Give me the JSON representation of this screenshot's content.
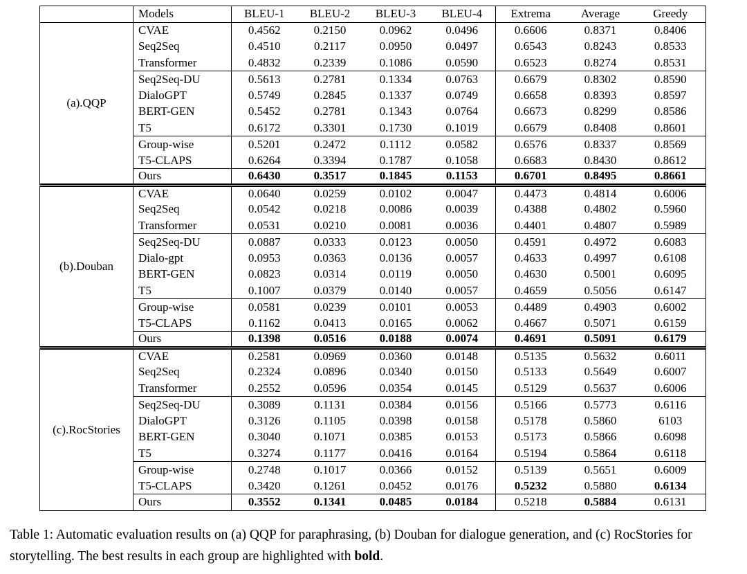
{
  "table": {
    "header": {
      "models_label": "Models",
      "metric_labels": [
        "BLEU-1",
        "BLEU-2",
        "BLEU-3",
        "BLEU-4",
        "Extrema",
        "Average",
        "Greedy"
      ]
    },
    "groups": [
      {
        "label": "(a).QQP",
        "subgroups": [
          {
            "rows": [
              {
                "model": "CVAE",
                "values": [
                  "0.4562",
                  "0.2150",
                  "0.0962",
                  "0.0496",
                  "0.6606",
                  "0.8371",
                  "0.8406"
                ],
                "bold": [
                  0,
                  0,
                  0,
                  0,
                  0,
                  0,
                  0
                ]
              },
              {
                "model": "Seq2Seq",
                "values": [
                  "0.4510",
                  "0.2117",
                  "0.0950",
                  "0.0497",
                  "0.6543",
                  "0.8243",
                  "0.8533"
                ],
                "bold": [
                  0,
                  0,
                  0,
                  0,
                  0,
                  0,
                  0
                ]
              },
              {
                "model": "Transformer",
                "values": [
                  "0.4832",
                  "0.2339",
                  "0.1086",
                  "0.0590",
                  "0.6523",
                  "0.8274",
                  "0.8531"
                ],
                "bold": [
                  0,
                  0,
                  0,
                  0,
                  0,
                  0,
                  0
                ]
              }
            ]
          },
          {
            "rows": [
              {
                "model": "Seq2Seq-DU",
                "values": [
                  "0.5613",
                  "0.2781",
                  "0.1334",
                  "0.0763",
                  "0.6679",
                  "0.8302",
                  "0.8590"
                ],
                "bold": [
                  0,
                  0,
                  0,
                  0,
                  0,
                  0,
                  0
                ]
              },
              {
                "model": "DialoGPT",
                "values": [
                  "0.5749",
                  "0.2845",
                  "0.1337",
                  "0.0749",
                  "0.6658",
                  "0.8393",
                  "0.8597"
                ],
                "bold": [
                  0,
                  0,
                  0,
                  0,
                  0,
                  0,
                  0
                ]
              },
              {
                "model": "BERT-GEN",
                "values": [
                  "0.5452",
                  "0.2781",
                  "0.1343",
                  "0.0764",
                  "0.6673",
                  "0.8299",
                  "0.8586"
                ],
                "bold": [
                  0,
                  0,
                  0,
                  0,
                  0,
                  0,
                  0
                ]
              },
              {
                "model": "T5",
                "values": [
                  "0.6172",
                  "0.3301",
                  "0.1730",
                  "0.1019",
                  "0.6679",
                  "0.8408",
                  "0.8601"
                ],
                "bold": [
                  0,
                  0,
                  0,
                  0,
                  0,
                  0,
                  0
                ]
              }
            ]
          },
          {
            "rows": [
              {
                "model": "Group-wise",
                "values": [
                  "0.5201",
                  "0.2472",
                  "0.1112",
                  "0.0582",
                  "0.6576",
                  "0.8337",
                  "0.8569"
                ],
                "bold": [
                  0,
                  0,
                  0,
                  0,
                  0,
                  0,
                  0
                ]
              },
              {
                "model": "T5-CLAPS",
                "values": [
                  "0.6264",
                  "0.3394",
                  "0.1787",
                  "0.1058",
                  "0.6683",
                  "0.8430",
                  "0.8612"
                ],
                "bold": [
                  0,
                  0,
                  0,
                  0,
                  0,
                  0,
                  0
                ]
              }
            ]
          },
          {
            "rows": [
              {
                "model": "Ours",
                "values": [
                  "0.6430",
                  "0.3517",
                  "0.1845",
                  "0.1153",
                  "0.6701",
                  "0.8495",
                  "0.8661"
                ],
                "bold": [
                  1,
                  1,
                  1,
                  1,
                  1,
                  1,
                  1
                ]
              }
            ]
          }
        ]
      },
      {
        "label": "(b).Douban",
        "subgroups": [
          {
            "rows": [
              {
                "model": "CVAE",
                "values": [
                  "0.0640",
                  "0.0259",
                  "0.0102",
                  "0.0047",
                  "0.4473",
                  "0.4814",
                  "0.6006"
                ],
                "bold": [
                  0,
                  0,
                  0,
                  0,
                  0,
                  0,
                  0
                ]
              },
              {
                "model": "Seq2Seq",
                "values": [
                  "0.0542",
                  "0.0218",
                  "0.0086",
                  "0.0039",
                  "0.4388",
                  "0.4802",
                  "0.5960"
                ],
                "bold": [
                  0,
                  0,
                  0,
                  0,
                  0,
                  0,
                  0
                ]
              },
              {
                "model": "Transformer",
                "values": [
                  "0.0531",
                  "0.0210",
                  "0.0081",
                  "0.0036",
                  "0.4401",
                  "0.4807",
                  "0.5989"
                ],
                "bold": [
                  0,
                  0,
                  0,
                  0,
                  0,
                  0,
                  0
                ]
              }
            ]
          },
          {
            "rows": [
              {
                "model": "Seq2Seq-DU",
                "values": [
                  "0.0887",
                  "0.0333",
                  "0.0123",
                  "0.0050",
                  "0.4591",
                  "0.4972",
                  "0.6083"
                ],
                "bold": [
                  0,
                  0,
                  0,
                  0,
                  0,
                  0,
                  0
                ]
              },
              {
                "model": "Dialo-gpt",
                "values": [
                  "0.0953",
                  "0.0363",
                  "0.0136",
                  "0.0057",
                  "0.4633",
                  "0.4997",
                  "0.6108"
                ],
                "bold": [
                  0,
                  0,
                  0,
                  0,
                  0,
                  0,
                  0
                ]
              },
              {
                "model": "BERT-GEN",
                "values": [
                  "0.0823",
                  "0.0314",
                  "0.0119",
                  "0.0050",
                  "0.4630",
                  "0.5001",
                  "0.6095"
                ],
                "bold": [
                  0,
                  0,
                  0,
                  0,
                  0,
                  0,
                  0
                ]
              },
              {
                "model": "T5",
                "values": [
                  "0.1007",
                  "0.0379",
                  "0.0140",
                  "0.0057",
                  "0.4659",
                  "0.5056",
                  "0.6147"
                ],
                "bold": [
                  0,
                  0,
                  0,
                  0,
                  0,
                  0,
                  0
                ]
              }
            ]
          },
          {
            "rows": [
              {
                "model": "Group-wise",
                "values": [
                  "0.0581",
                  "0.0239",
                  "0.0101",
                  "0.0053",
                  "0.4489",
                  "0.4903",
                  "0.6002"
                ],
                "bold": [
                  0,
                  0,
                  0,
                  0,
                  0,
                  0,
                  0
                ]
              },
              {
                "model": "T5-CLAPS",
                "values": [
                  "0.1162",
                  "0.0413",
                  "0.0165",
                  "0.0062",
                  "0.4667",
                  "0.5071",
                  "0.6159"
                ],
                "bold": [
                  0,
                  0,
                  0,
                  0,
                  0,
                  0,
                  0
                ]
              }
            ]
          },
          {
            "rows": [
              {
                "model": "Ours",
                "values": [
                  "0.1398",
                  "0.0516",
                  "0.0188",
                  "0.0074",
                  "0.4691",
                  "0.5091",
                  "0.6179"
                ],
                "bold": [
                  1,
                  1,
                  1,
                  1,
                  1,
                  1,
                  1
                ]
              }
            ]
          }
        ]
      },
      {
        "label": "(c).RocStories",
        "subgroups": [
          {
            "rows": [
              {
                "model": "CVAE",
                "values": [
                  "0.2581",
                  "0.0969",
                  "0.0360",
                  "0.0148",
                  "0.5135",
                  "0.5632",
                  "0.6011"
                ],
                "bold": [
                  0,
                  0,
                  0,
                  0,
                  0,
                  0,
                  0
                ]
              },
              {
                "model": "Seq2Seq",
                "values": [
                  "0.2324",
                  "0.0896",
                  "0.0340",
                  "0.0150",
                  "0.5133",
                  "0.5649",
                  "0.6007"
                ],
                "bold": [
                  0,
                  0,
                  0,
                  0,
                  0,
                  0,
                  0
                ]
              },
              {
                "model": "Transformer",
                "values": [
                  "0.2552",
                  "0.0596",
                  "0.0354",
                  "0.0145",
                  "0.5129",
                  "0.5637",
                  "0.6006"
                ],
                "bold": [
                  0,
                  0,
                  0,
                  0,
                  0,
                  0,
                  0
                ]
              }
            ]
          },
          {
            "rows": [
              {
                "model": "Seq2Seq-DU",
                "values": [
                  "0.3089",
                  "0.1131",
                  "0.0384",
                  "0.0156",
                  "0.5166",
                  "0.5773",
                  "0.6116"
                ],
                "bold": [
                  0,
                  0,
                  0,
                  0,
                  0,
                  0,
                  0
                ]
              },
              {
                "model": "DialoGPT",
                "values": [
                  "0.3126",
                  "0.1105",
                  "0.0398",
                  "0.0158",
                  "0.5178",
                  "0.5860",
                  "6103"
                ],
                "bold": [
                  0,
                  0,
                  0,
                  0,
                  0,
                  0,
                  0
                ]
              },
              {
                "model": "BERT-GEN",
                "values": [
                  "0.3040",
                  "0.1071",
                  "0.0385",
                  "0.0153",
                  "0.5173",
                  "0.5866",
                  "0.6098"
                ],
                "bold": [
                  0,
                  0,
                  0,
                  0,
                  0,
                  0,
                  0
                ]
              },
              {
                "model": "T5",
                "values": [
                  "0.3274",
                  "0.1177",
                  "0.0416",
                  "0.0164",
                  "0.5194",
                  "0.5864",
                  "0.6118"
                ],
                "bold": [
                  0,
                  0,
                  0,
                  0,
                  0,
                  0,
                  0
                ]
              }
            ]
          },
          {
            "rows": [
              {
                "model": "Group-wise",
                "values": [
                  "0.2748",
                  "0.1017",
                  "0.0366",
                  "0.0152",
                  "0.5139",
                  "0.5651",
                  "0.6009"
                ],
                "bold": [
                  0,
                  0,
                  0,
                  0,
                  0,
                  0,
                  0
                ]
              },
              {
                "model": "T5-CLAPS",
                "values": [
                  "0.3420",
                  "0.1261",
                  "0.0452",
                  "0.0176",
                  "0.5232",
                  "0.5880",
                  "0.6134"
                ],
                "bold": [
                  0,
                  0,
                  0,
                  0,
                  1,
                  0,
                  1
                ]
              }
            ]
          },
          {
            "rows": [
              {
                "model": "Ours",
                "values": [
                  "0.3552",
                  "0.1341",
                  "0.0485",
                  "0.0184",
                  "0.5218",
                  "0.5884",
                  "0.6131"
                ],
                "bold": [
                  1,
                  1,
                  1,
                  1,
                  0,
                  1,
                  0
                ]
              }
            ]
          }
        ]
      }
    ]
  },
  "caption": {
    "text_before_bold": "Table 1: Automatic evaluation results on (a) QQP for paraphrasing, (b) Douban for dialogue generation, and (c) RocStories for storytelling. The best results in each group are highlighted with ",
    "bold_word": "bold",
    "text_after_bold": "."
  }
}
